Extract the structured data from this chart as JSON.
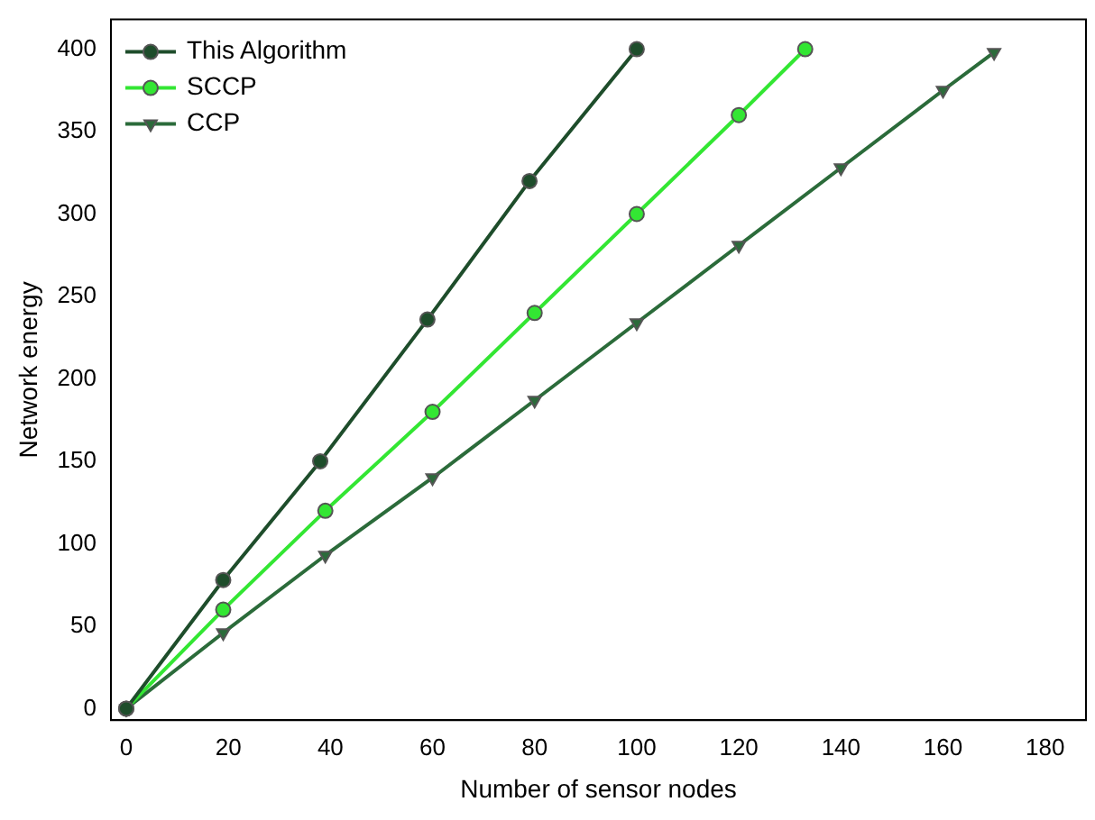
{
  "chart_data": {
    "type": "line",
    "xlabel": "Number of sensor nodes",
    "ylabel": "Network energy",
    "xlim": [
      -3,
      188
    ],
    "xticks": [
      0,
      20,
      40,
      60,
      80,
      100,
      120,
      140,
      160,
      180
    ],
    "ylim": [
      -7,
      418
    ],
    "yticks": [
      0,
      50,
      100,
      150,
      200,
      250,
      300,
      350,
      400
    ],
    "grid": false,
    "legend": "top left",
    "line_style": "solid",
    "series": [
      {
        "name": "This Algorithm",
        "color": "#1e4d2b",
        "marker": "circle",
        "x": [
          0,
          19,
          38,
          59,
          79,
          100
        ],
        "values": [
          0,
          78,
          150,
          236,
          320,
          400
        ]
      },
      {
        "name": "SCCP",
        "color": "#33e633",
        "marker": "circle",
        "x": [
          0,
          19,
          39,
          60,
          80,
          100,
          120,
          133
        ],
        "values": [
          0,
          60,
          120,
          180,
          240,
          300,
          360,
          400
        ]
      },
      {
        "name": "CCP",
        "color": "#2b6b3a",
        "marker": "triangle",
        "x": [
          0,
          19,
          39,
          60,
          80,
          100,
          120,
          140,
          160,
          170
        ],
        "values": [
          0,
          46,
          93,
          140,
          187,
          234,
          281,
          328,
          375,
          398
        ]
      }
    ]
  }
}
